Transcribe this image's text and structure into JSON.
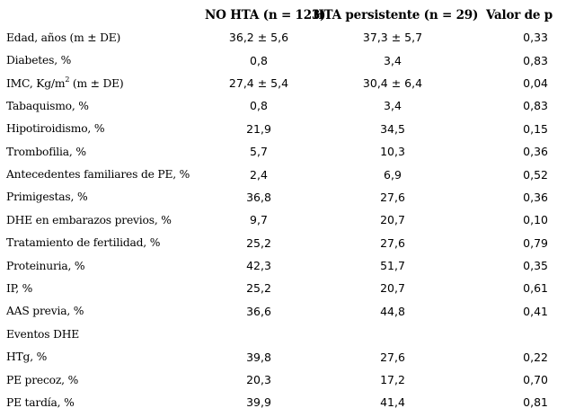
{
  "table": {
    "headers": [
      "",
      "NO HTA (n = 123)",
      "HTA persistente (n = 29)",
      "Valor de p"
    ],
    "rows": [
      {
        "label": "Edad, años (m ± DE)",
        "no_hta": "36,2 ± 5,6",
        "hta_persistente": "37,3 ± 5,7",
        "p": "0,33"
      },
      {
        "label": "Diabetes, %",
        "no_hta": "0,8",
        "hta_persistente": "3,4",
        "p": "0,83"
      },
      {
        "label_pre": "IMC, Kg/m",
        "label_sup": "2",
        "label_post": " (m ± DE)",
        "no_hta": "27,4 ± 5,4",
        "hta_persistente": "30,4 ± 6,4",
        "p": "0,04"
      },
      {
        "label": "Tabaquismo, %",
        "no_hta": "0,8",
        "hta_persistente": "3,4",
        "p": "0,83"
      },
      {
        "label": "Hipotiroidismo, %",
        "no_hta": "21,9",
        "hta_persistente": "34,5",
        "p": "0,15"
      },
      {
        "label": "Trombofilia, %",
        "no_hta": "5,7",
        "hta_persistente": "10,3",
        "p": "0,36"
      },
      {
        "label": "Antecedentes familiares de PE, %",
        "no_hta": "2,4",
        "hta_persistente": "6,9",
        "p": "0,52"
      },
      {
        "label": "Primigestas, %",
        "no_hta": "36,8",
        "hta_persistente": "27,6",
        "p": "0,36"
      },
      {
        "label": "DHE en embarazos previos, %",
        "no_hta": "9,7",
        "hta_persistente": "20,7",
        "p": "0,10"
      },
      {
        "label": "Tratamiento de fertilidad, %",
        "no_hta": "25,2",
        "hta_persistente": "27,6",
        "p": "0,79"
      },
      {
        "label": "Proteinuria, %",
        "no_hta": "42,3",
        "hta_persistente": "51,7",
        "p": "0,35"
      },
      {
        "label": "IP, %",
        "no_hta": "25,2",
        "hta_persistente": "20,7",
        "p": "0,61"
      },
      {
        "label": "AAS previa, %",
        "no_hta": "36,6",
        "hta_persistente": "44,8",
        "p": "0,41"
      },
      {
        "label": "Eventos DHE",
        "no_hta": "",
        "hta_persistente": "",
        "p": ""
      },
      {
        "label": "HTg, %",
        "no_hta": "39,8",
        "hta_persistente": "27,6",
        "p": "0,22"
      },
      {
        "label": "PE precoz, %",
        "no_hta": "20,3",
        "hta_persistente": "17,2",
        "p": "0,70"
      },
      {
        "label": "PE tardía, %",
        "no_hta": "39,9",
        "hta_persistente": "41,4",
        "p": "0,81"
      }
    ]
  }
}
